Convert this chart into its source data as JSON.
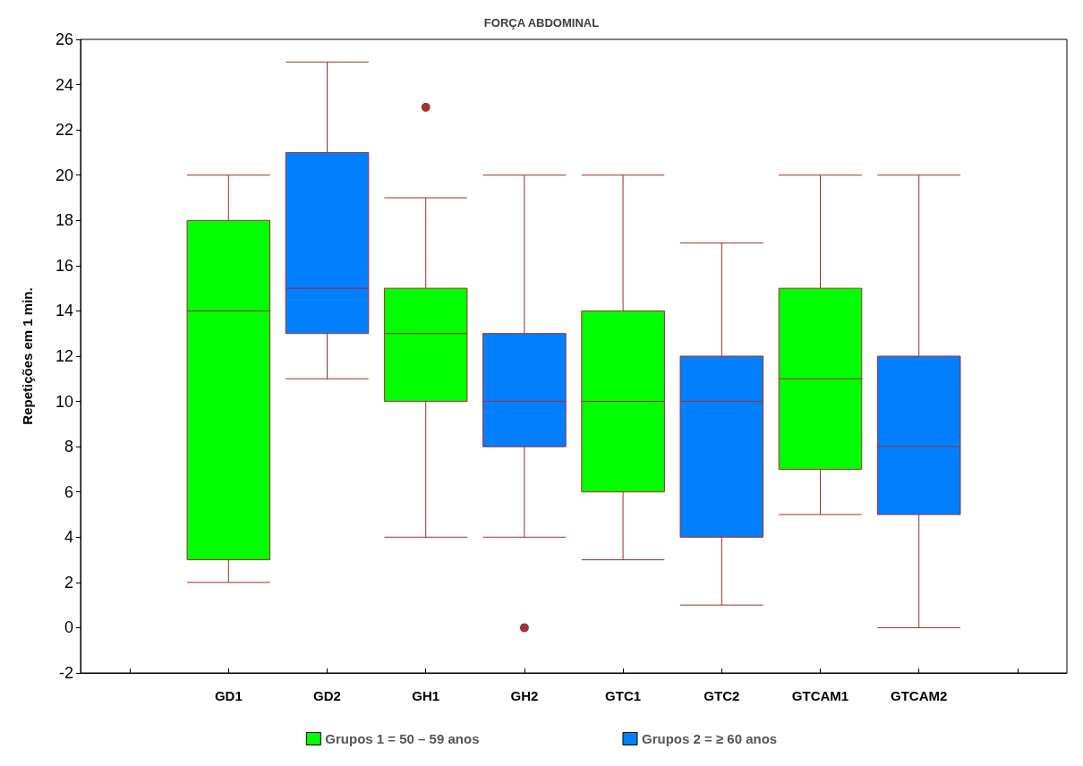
{
  "chart_data": {
    "type": "box",
    "title": "FORÇA ABDOMINAL",
    "ylabel": "Repetições em 1 min.",
    "categories": [
      null,
      "GD1",
      "GD2",
      "GH1",
      "GH2",
      "GTC1",
      "GTC2",
      "GTCAM1",
      "GTCAM2",
      null
    ],
    "series": [
      {
        "name": "Grupos 1 = 50 – 59 anos",
        "color": "#00ff00",
        "boxes": [
          null,
          {
            "low": 2,
            "q1": 3,
            "median": 14,
            "q3": 18,
            "high": 20
          },
          null,
          {
            "low": 4,
            "q1": 10,
            "median": 13,
            "q3": 15,
            "high": 19,
            "outliers": [
              23
            ]
          },
          null,
          {
            "low": 3,
            "q1": 6,
            "median": 10,
            "q3": 14,
            "high": 20
          },
          null,
          {
            "low": 5,
            "q1": 7,
            "median": 11,
            "q3": 15,
            "high": 20
          },
          null,
          null
        ]
      },
      {
        "name": "Grupos 2 = ≥ 60 anos",
        "color": "#0080ff",
        "boxes": [
          null,
          null,
          {
            "low": 11,
            "q1": 13,
            "median": 15,
            "q3": 21,
            "high": 25
          },
          null,
          {
            "low": 4,
            "q1": 8,
            "median": 10,
            "q3": 13,
            "high": 20,
            "outliers": [
              0
            ]
          },
          null,
          {
            "low": 1,
            "q1": 4,
            "median": 10,
            "q3": 12,
            "high": 17
          },
          null,
          {
            "low": 0,
            "q1": 5,
            "median": 8,
            "q3": 12,
            "high": 20
          },
          null
        ]
      }
    ],
    "ylim": [
      -2,
      26
    ],
    "yticks": [
      -2,
      0,
      2,
      4,
      6,
      8,
      10,
      12,
      14,
      16,
      18,
      20,
      22,
      24,
      26
    ],
    "grid": false,
    "legend": "bottom"
  }
}
